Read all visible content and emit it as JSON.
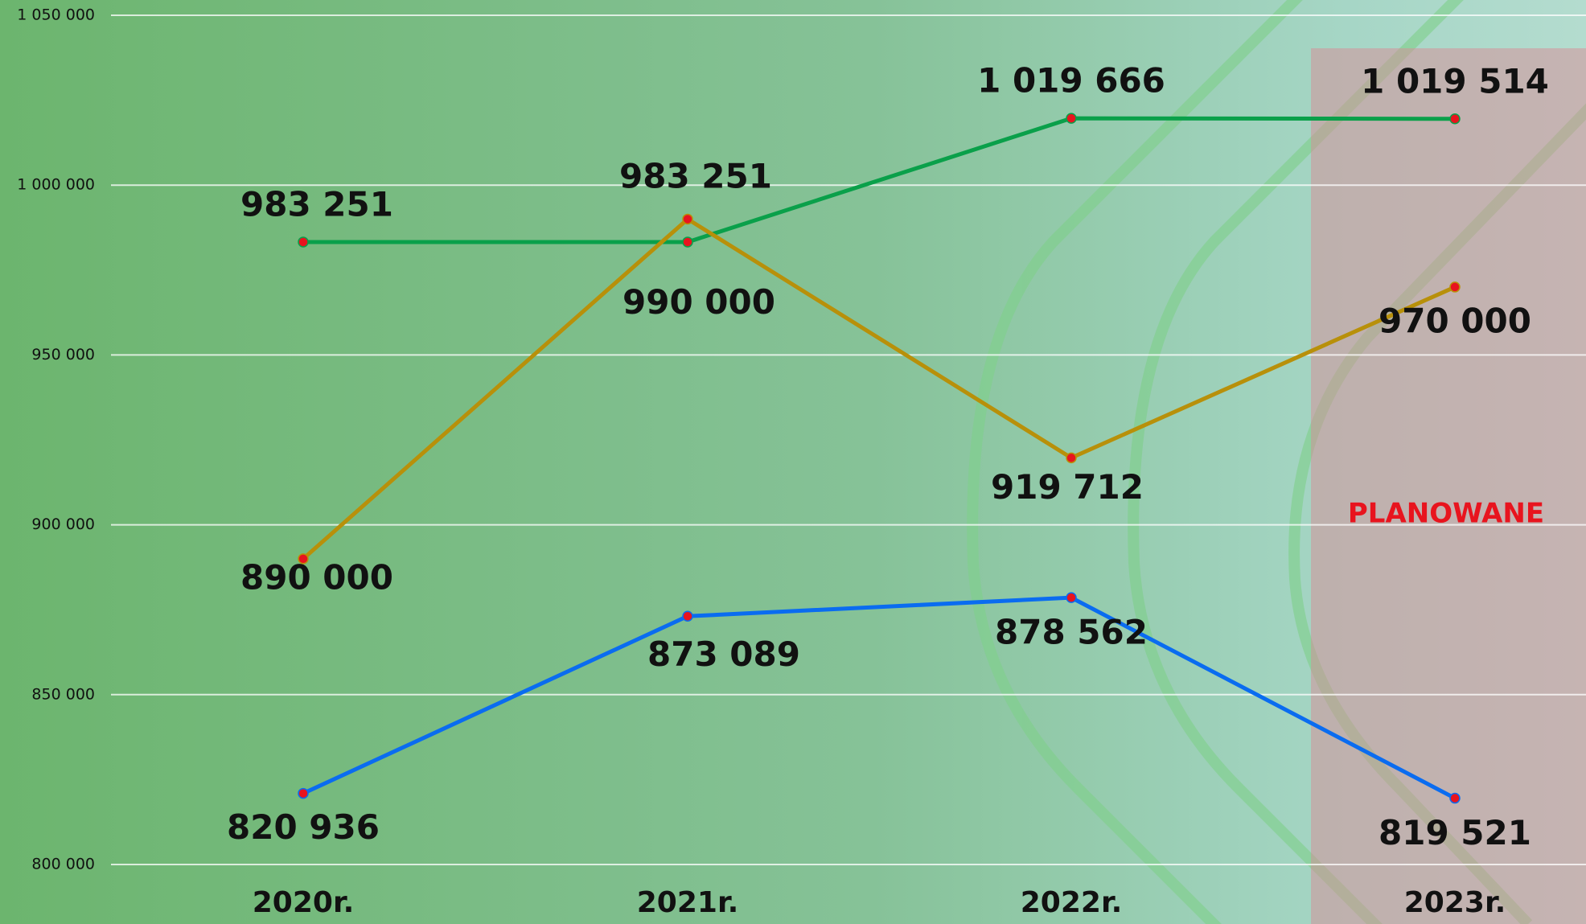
{
  "chart_data": {
    "type": "line",
    "categories": [
      "2020r.",
      "2021r.",
      "2022r.",
      "2023r."
    ],
    "series": [
      {
        "color": "#0aa04a",
        "values": [
          983251,
          983251,
          1019666,
          1019514
        ],
        "value_labels": [
          "983 251",
          "983 251",
          "1 019 666",
          "1 019 514"
        ]
      },
      {
        "color": "#b8900a",
        "values": [
          890000,
          990000,
          919712,
          970000
        ],
        "value_labels": [
          "890 000",
          "990 000",
          "919 712",
          "970 000"
        ]
      },
      {
        "color": "#0a6cf0",
        "values": [
          820936,
          873089,
          878562,
          819521
        ],
        "value_labels": [
          "820 936",
          "873 089",
          "878 562",
          "819 521"
        ]
      }
    ],
    "ylim": [
      800000,
      1050000
    ],
    "yticks": [
      {
        "value": 800000,
        "label": "800 000"
      },
      {
        "value": 850000,
        "label": "850 000"
      },
      {
        "value": 900000,
        "label": "900 000"
      },
      {
        "value": 950000,
        "label": "950 000"
      },
      {
        "value": 1000000,
        "label": "1 000 000"
      },
      {
        "value": 1050000,
        "label": "1 050 000"
      }
    ],
    "grid": true,
    "annotation": "PLANOWANE"
  }
}
